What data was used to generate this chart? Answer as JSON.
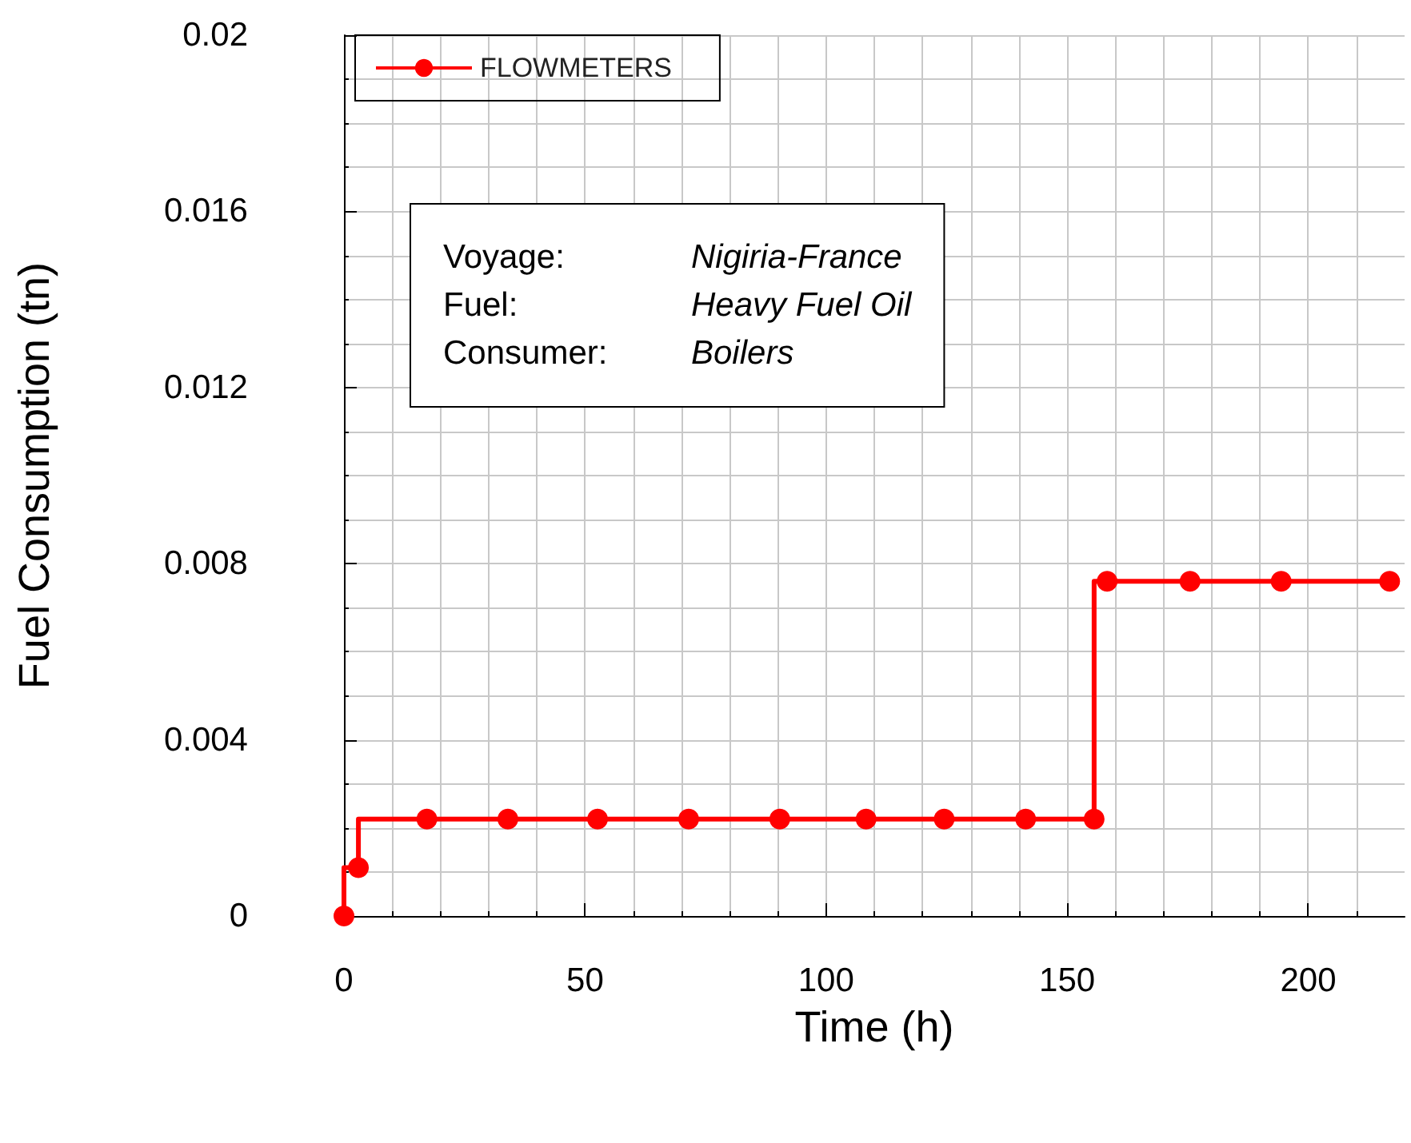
{
  "chart_data": {
    "type": "step",
    "xlabel": "Time (h)",
    "ylabel": "Fuel Consumption (tn)",
    "series": [
      {
        "name": "FLOWMETERS",
        "color": "#ff0000",
        "x": [
          0,
          3,
          17.2,
          34,
          52.6,
          71.5,
          90.4,
          108.3,
          124.5,
          141.4,
          155.6,
          158.3,
          175.5,
          194.4,
          216.9
        ],
        "values": [
          0,
          0.0011,
          0.0022,
          0.0022,
          0.0022,
          0.0022,
          0.0022,
          0.0022,
          0.0022,
          0.0022,
          0.0022,
          0.0076,
          0.0076,
          0.0076,
          0.0076
        ]
      }
    ],
    "xlim": [
      0,
      220
    ],
    "xticks": [
      0,
      50,
      100,
      150,
      200
    ],
    "ylim": [
      0,
      0.02
    ],
    "yticks": [
      0,
      0.004,
      0.008,
      0.012,
      0.016,
      0.02
    ],
    "grid": true,
    "legend": "top left",
    "marker": "circle",
    "line_style": "solid",
    "annotations": [
      "Voyage:\tNigiria-France",
      "Fuel:\tHeavy Fuel Oil",
      "Consumer:\tBoilers"
    ]
  }
}
